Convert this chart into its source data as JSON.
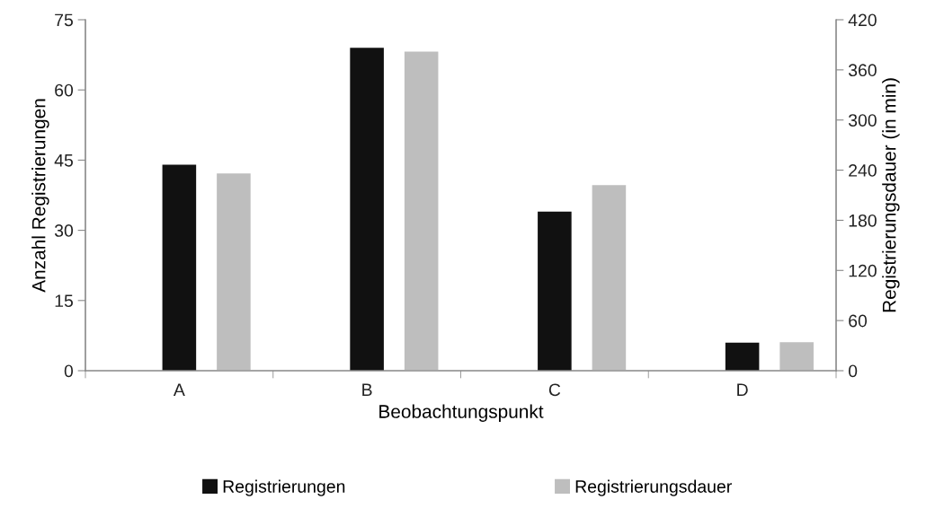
{
  "chart_data": {
    "type": "bar",
    "xlabel": "Beobachtungspunkt",
    "ylabel": "Anzahl Registrierungen",
    "y2label": "Registrierungsdauer (in min)",
    "categories": [
      "A",
      "B",
      "C",
      "D"
    ],
    "series": [
      {
        "name": "Registrierungen",
        "color": "#111111",
        "values": [
          44,
          69,
          34,
          6
        ]
      },
      {
        "name": "Registrierungsdauer",
        "color": "#bebebe",
        "values": [
          236,
          382,
          222,
          34
        ],
        "axis": "y2"
      }
    ],
    "ylim": [
      0,
      75
    ],
    "yticks": [
      0,
      15,
      30,
      45,
      60,
      75
    ],
    "y2lim": [
      0,
      420
    ],
    "y2ticks": [
      0,
      60,
      120,
      180,
      240,
      300,
      360,
      420
    ],
    "grid": false,
    "legend": "bottom"
  }
}
